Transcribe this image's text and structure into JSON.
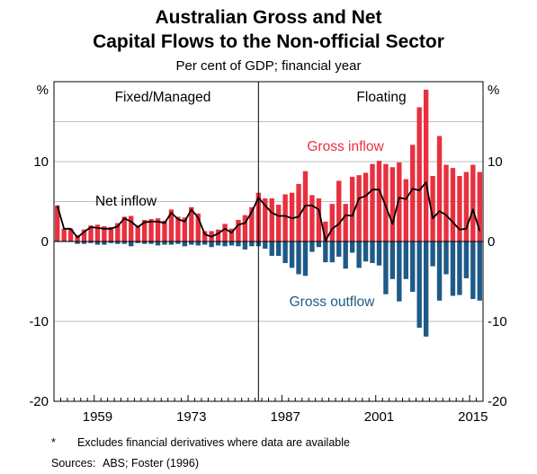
{
  "title_line1": "Australian Gross and Net",
  "title_line2": "Capital Flows to the Non-official Sector",
  "subtitle": "Per cent of GDP; financial year",
  "footnote_marker": "*",
  "footnote": "Excludes financial derivatives where data are available",
  "sources_label": "Sources:",
  "sources": "ABS; Foster (1996)",
  "colors": {
    "inflow": "#e8303f",
    "outflow": "#1e5a87",
    "net": "#000000",
    "grid": "#bdbdbd"
  },
  "chart_data": {
    "type": "bar",
    "xlim": [
      1953,
      2017
    ],
    "ylim": [
      -20,
      20
    ],
    "y_ticks": [
      -20,
      -10,
      0,
      10
    ],
    "x_ticks": [
      1959,
      1973,
      1987,
      2001,
      2015
    ],
    "y_unit_left": "%",
    "y_unit_right": "%",
    "regime_break_year": 1983.5,
    "regime_labels": [
      "Fixed/Managed",
      "Floating"
    ],
    "series_labels": {
      "inflow": "Gross inflow",
      "outflow": "Gross outflow",
      "net": "Net inflow"
    },
    "years": [
      1953,
      1954,
      1955,
      1956,
      1957,
      1958,
      1959,
      1960,
      1961,
      1962,
      1963,
      1964,
      1965,
      1966,
      1967,
      1968,
      1969,
      1970,
      1971,
      1972,
      1973,
      1974,
      1975,
      1976,
      1977,
      1978,
      1979,
      1980,
      1981,
      1982,
      1983,
      1984,
      1985,
      1986,
      1987,
      1988,
      1989,
      1990,
      1991,
      1992,
      1993,
      1994,
      1995,
      1996,
      1997,
      1998,
      1999,
      2000,
      2001,
      2002,
      2003,
      2004,
      2005,
      2006,
      2007,
      2008,
      2009,
      2010,
      2011,
      2012,
      2013,
      2014,
      2015,
      2016
    ],
    "series": [
      {
        "name": "Gross inflow",
        "values": [
          4.5,
          1.6,
          1.6,
          0.8,
          1.5,
          2.0,
          2.1,
          1.9,
          1.8,
          2.3,
          3.1,
          3.2,
          2.0,
          2.7,
          2.8,
          2.9,
          2.6,
          4.0,
          3.1,
          3.0,
          4.3,
          3.5,
          1.3,
          1.3,
          1.5,
          2.2,
          1.6,
          2.7,
          3.3,
          4.3,
          6.1,
          5.4,
          5.4,
          4.6,
          5.9,
          6.1,
          7.2,
          8.8,
          5.8,
          5.4,
          2.5,
          4.7,
          7.6,
          4.7,
          8.1,
          8.3,
          8.6,
          9.7,
          10.1,
          9.7,
          9.3,
          9.9,
          7.8,
          12.1,
          16.8,
          19.0,
          8.2,
          13.2,
          9.6,
          9.2,
          8.2,
          8.7,
          9.6,
          8.7
        ]
      },
      {
        "name": "Gross outflow",
        "values": [
          0.1,
          0.1,
          0.1,
          -0.3,
          -0.3,
          -0.2,
          -0.4,
          -0.4,
          -0.2,
          -0.3,
          -0.3,
          -0.6,
          -0.2,
          -0.3,
          -0.3,
          -0.5,
          -0.4,
          -0.4,
          -0.3,
          -0.6,
          -0.4,
          -0.5,
          -0.4,
          -0.7,
          -0.5,
          -0.6,
          -0.5,
          -0.6,
          -1.0,
          -0.6,
          -0.6,
          -0.9,
          -1.8,
          -1.8,
          -2.7,
          -3.3,
          -4.1,
          -4.3,
          -1.3,
          -0.7,
          -2.6,
          -2.6,
          -1.9,
          -3.4,
          -1.4,
          -3.3,
          -2.5,
          -2.7,
          -3.0,
          -6.6,
          -4.7,
          -7.5,
          -4.7,
          -6.3,
          -10.8,
          -11.9,
          -3.1,
          -7.4,
          -4.1,
          -6.8,
          -6.7,
          -4.6,
          -7.2,
          -7.4
        ]
      },
      {
        "name": "Net inflow",
        "values": [
          4.5,
          1.6,
          1.6,
          0.5,
          1.2,
          1.8,
          1.7,
          1.6,
          1.6,
          1.9,
          2.9,
          2.5,
          1.8,
          2.4,
          2.5,
          2.5,
          2.3,
          3.6,
          2.8,
          2.5,
          4.0,
          3.0,
          0.9,
          0.6,
          1.0,
          1.6,
          1.1,
          2.1,
          2.3,
          3.7,
          5.5,
          4.5,
          3.6,
          3.2,
          3.2,
          2.9,
          3.1,
          4.5,
          4.5,
          4.0,
          0.1,
          1.6,
          2.2,
          3.3,
          3.2,
          5.4,
          5.7,
          6.5,
          6.5,
          4.4,
          2.2,
          5.5,
          5.3,
          6.6,
          6.4,
          7.4,
          2.9,
          3.8,
          3.3,
          2.4,
          1.5,
          1.6,
          4.0,
          1.3
        ]
      }
    ]
  }
}
